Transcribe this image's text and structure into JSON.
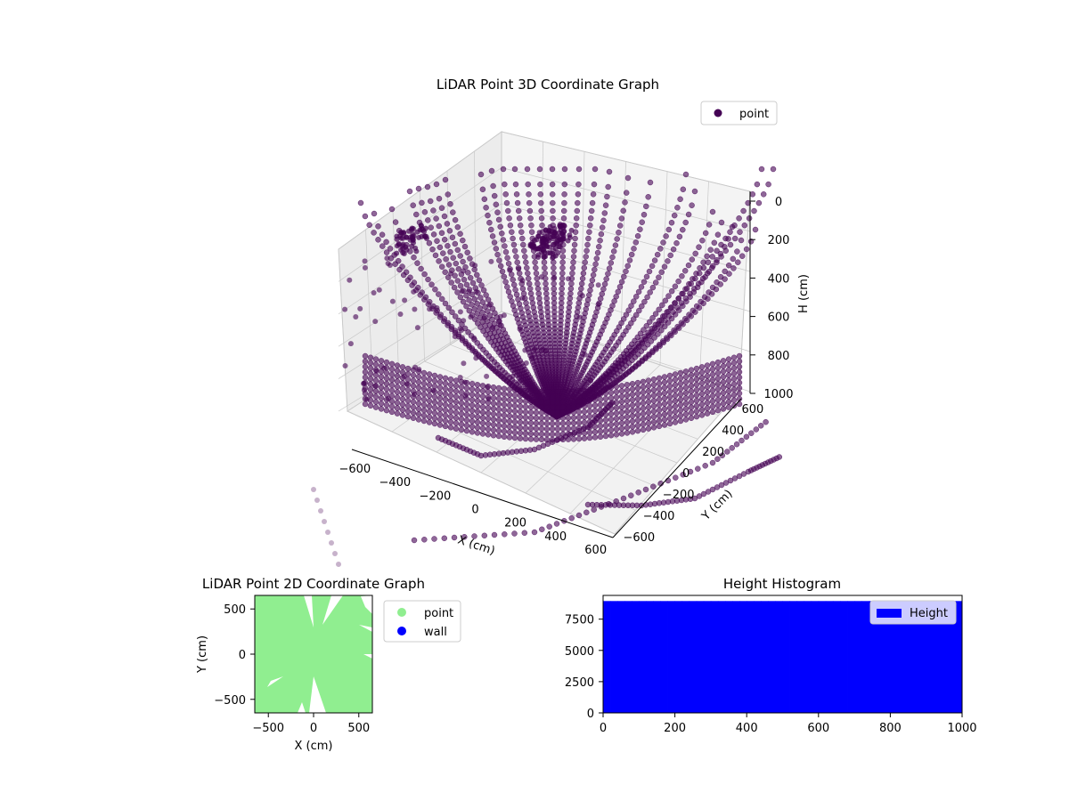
{
  "figure": {
    "colors": {
      "point_3d": "#440154",
      "point_2d": "#90ee90",
      "wall": "#0000ff",
      "hist_bar": "#0000ff",
      "pane": "#f2f2f2",
      "grid": "#c8c8c8"
    }
  },
  "chart_data": [
    {
      "type": "scatter",
      "title": "LiDAR Point 3D Coordinate Graph",
      "xlabel": "X (cm)",
      "ylabel": "Y (cm)",
      "zlabel": "H (cm)",
      "xlim": [
        -650,
        650
      ],
      "ylim": [
        -650,
        650
      ],
      "zlim": [
        0,
        1000
      ],
      "z_inverted": true,
      "x_ticks": [
        "−600",
        "−400",
        "−200",
        "0",
        "200",
        "400",
        "600"
      ],
      "y_ticks": [
        "−600",
        "−400",
        "−200",
        "0",
        "200",
        "400",
        "600"
      ],
      "z_ticks": [
        "0",
        "200",
        "400",
        "600",
        "800",
        "1000"
      ],
      "legend": {
        "entries": [
          "point"
        ],
        "placement": "top-right"
      },
      "series": [
        {
          "name": "point",
          "marker": "circle",
          "note_values": "dense radial arcs of LiDAR returns"
        }
      ],
      "grid": true
    },
    {
      "type": "scatter",
      "title": "LiDAR Point 2D Coordinate Graph",
      "xlabel": "X (cm)",
      "ylabel": "Y (cm)",
      "xlim": [
        -650,
        650
      ],
      "ylim": [
        -650,
        650
      ],
      "x_ticks": [
        "−500",
        "0",
        "500"
      ],
      "y_ticks": [
        "−500",
        "0",
        "500"
      ],
      "legend": {
        "entries": [
          "point",
          "wall"
        ],
        "placement": "right-outside"
      },
      "series": [
        {
          "name": "point"
        },
        {
          "name": "wall",
          "values": []
        }
      ],
      "grid": false
    },
    {
      "type": "bar",
      "title": "Height Histogram",
      "xlabel": "",
      "ylabel": "",
      "xlim": [
        0,
        1000
      ],
      "ylim": [
        0,
        9400
      ],
      "x_ticks": [
        "0",
        "200",
        "400",
        "600",
        "800",
        "1000"
      ],
      "y_ticks": [
        "0",
        "2500",
        "5000",
        "7500"
      ],
      "bins": {
        "start": 0,
        "end": 1000,
        "count": 50
      },
      "values": [
        8950,
        8950,
        8950,
        8950,
        8950,
        8950,
        8950,
        8950,
        8950,
        8950,
        8950,
        8950,
        8950,
        8950,
        8950,
        8950,
        8950,
        8950,
        8950,
        8950,
        8950,
        8950,
        8950,
        8950,
        8950,
        8950,
        8950,
        8950,
        8950,
        8950,
        8950,
        8950,
        8950,
        8950,
        8950,
        8950,
        8950,
        8950,
        8950,
        8950,
        8950,
        8950,
        8950,
        8950,
        8950,
        8950,
        8950,
        8950,
        8950,
        8950
      ],
      "legend": {
        "entries": [
          "Height"
        ],
        "placement": "top-right"
      },
      "grid": false
    }
  ]
}
